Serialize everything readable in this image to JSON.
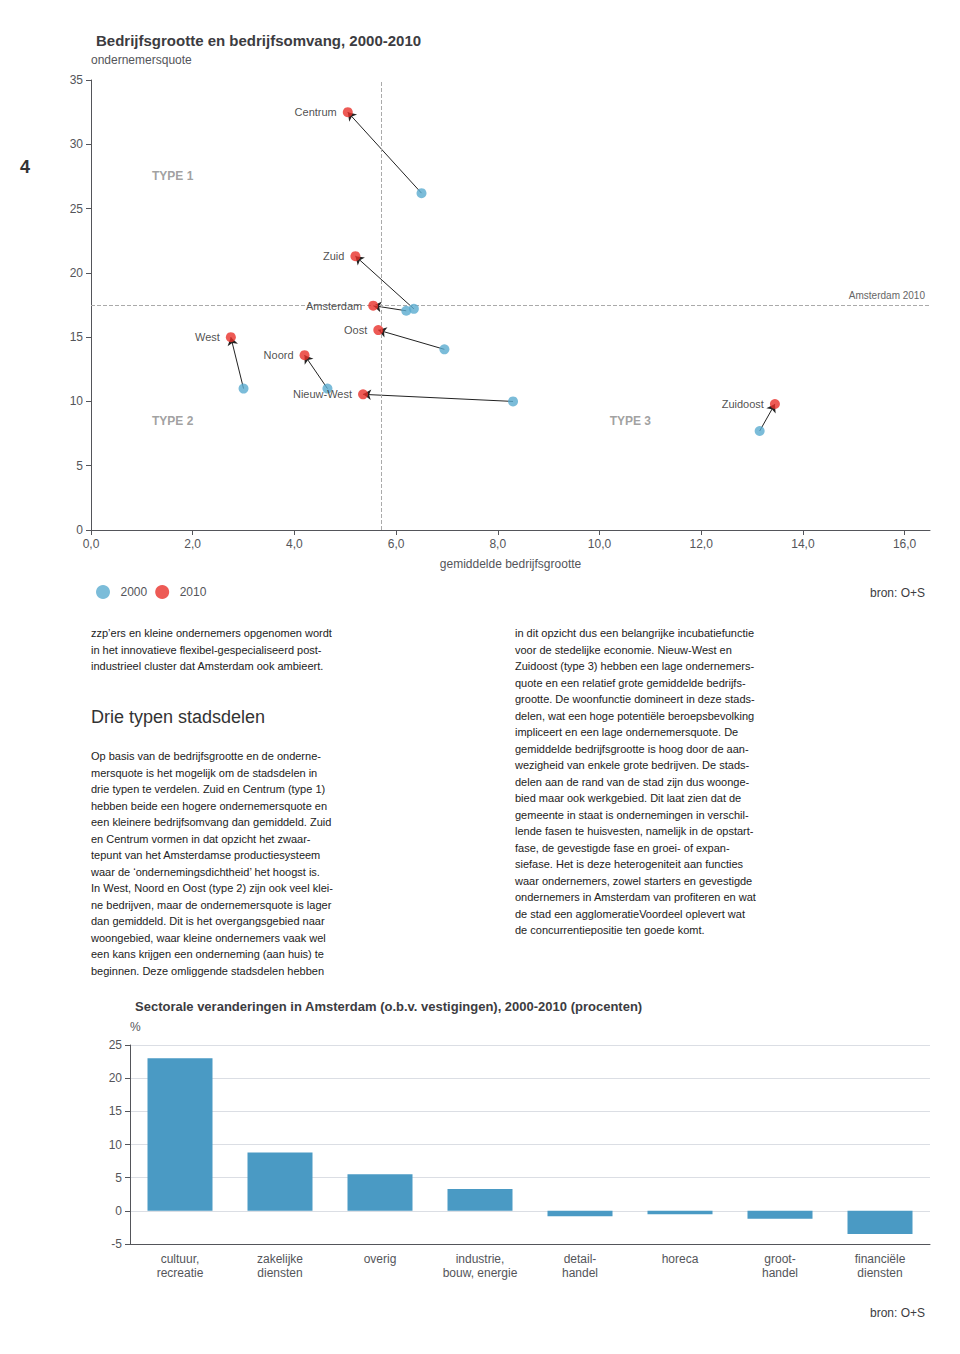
{
  "chart_data": [
    {
      "type": "scatter",
      "title": "Bedrijfsgrootte en bedrijfsomvang, 2000-2010",
      "xlabel": "gemiddelde bedrijfsgrootte",
      "ylabel": "ondernemersquote",
      "xlim": [
        0,
        16.5
      ],
      "ylim": [
        0,
        35
      ],
      "xticks": [
        {
          "value": 0.0,
          "label": "0,0"
        },
        {
          "value": 2.0,
          "label": "2,0"
        },
        {
          "value": 4.0,
          "label": "4,0"
        },
        {
          "value": 6.0,
          "label": "6,0"
        },
        {
          "value": 8.0,
          "label": "8,0"
        },
        {
          "value": 10.0,
          "label": "10,0"
        },
        {
          "value": 12.0,
          "label": "12,0"
        },
        {
          "value": 14.0,
          "label": "14,0"
        },
        {
          "value": 16.0,
          "label": "16,0"
        }
      ],
      "yticks": [
        0,
        5,
        10,
        15,
        20,
        25,
        30,
        35
      ],
      "grid": false,
      "legend": "bottom",
      "point_names": [
        "Centrum",
        "Zuid",
        "Amsterdam",
        "Oost",
        "West",
        "Noord",
        "Nieuw-West",
        "Zuidoost"
      ],
      "series": [
        {
          "name": "2000",
          "color": "#5aabcf",
          "x": [
            6.5,
            6.35,
            6.2,
            6.95,
            3.0,
            4.65,
            8.3,
            13.15
          ],
          "values": [
            26.2,
            17.2,
            17.05,
            14.05,
            11.0,
            11.0,
            10.0,
            7.7
          ]
        },
        {
          "name": "2010",
          "color": "#e8312a",
          "x": [
            5.05,
            5.2,
            5.55,
            5.65,
            2.75,
            4.2,
            5.35,
            13.45
          ],
          "values": [
            32.5,
            21.3,
            17.45,
            15.55,
            15.0,
            13.6,
            10.55,
            9.8
          ]
        }
      ],
      "reference_lines": [
        {
          "axis": "x",
          "value": 5.7
        },
        {
          "axis": "y",
          "value": 17.5,
          "label": "Amsterdam 2010"
        }
      ],
      "annotations": [
        {
          "text": "TYPE 1",
          "x": 1.2,
          "y": 27.5
        },
        {
          "text": "TYPE 2",
          "x": 1.2,
          "y": 8.5
        },
        {
          "text": "TYPE 3",
          "x": 10.2,
          "y": 8.5
        },
        {
          "text": "bron: O+S"
        }
      ]
    },
    {
      "type": "bar",
      "title": "Sectorale veranderingen in Amsterdam (o.b.v. vestigingen), 2000-2010 (procenten)",
      "ylabel": "%",
      "categories": [
        "cultuur,\nrecreatie",
        "zakelijke\ndiensten",
        "overig",
        "industrie,\nbouw, energie",
        "detail-\nhandel",
        "horeca",
        "groot-\nhandel",
        "financiële\ndiensten"
      ],
      "values": [
        23.0,
        8.8,
        5.5,
        3.3,
        -0.8,
        -0.5,
        -1.2,
        -3.5
      ],
      "color": "#4a9ac4",
      "ylim": [
        -5,
        25
      ],
      "yticks": [
        -5,
        0,
        5,
        10,
        15,
        20,
        25
      ],
      "grid": true,
      "annotations": [
        {
          "text": "bron: O+S"
        }
      ]
    }
  ],
  "page_texts": {
    "page_number": "4",
    "columns": [
      "zzp’ers en kleine ondernemers opgenomen wordt\nin het innovatieve flexibel-gespecialiseerd post-\nindustrieel cluster dat Amsterdam ook ambieert.",
      "in dit opzicht dus een belangrijke incubatiefunctie\nvoor de stedelijke economie. Nieuw-West en\nZuidoost (type 3) hebben een lage ondernemers-\nquote en een relatief grote gemiddelde bedrijfs-\ngrootte. De woonfunctie domineert in deze stads-\ndelen, wat een hoge potentiële beroepsbevolking\nimpliceert en een lage ondernemersquote. De\ngemiddelde bedrijfsgrootte is hoog door de aan-\nwezigheid van enkele grote bedrijven. De stads-\ndelen aan de rand van de stad zijn dus woonge-\nbied maar ook werkgebied. Dit laat zien dat de\ngemeente in staat is ondernemingen in verschil-\nlende fasen te huisvesten, namelijk in de opstart-\nfase, de gevestigde fase en groei- of expan-\nsiefase. Het is deze heterogeniteit aan functies\nwaar ondernemers, zowel starters en gevestigde\nondernemers in Amsterdam van profiteren en wat\nde stad een agglomeratieVoordeel oplevert wat\nde concurrentiepositie ten goede komt."
    ],
    "heading": "Drie typen stadsdelen",
    "body": "Op basis van de bedrijfsgrootte en de onderne-\nmersquote is het mogelijk om de stadsdelen in\ndrie typen te verdelen. Zuid en Centrum (type 1)\nhebben beide een hogere ondernemersquote en\neen kleinere bedrijfsomvang dan gemiddeld. Zuid\nen Centrum vormen in dat opzicht het zwaar-\ntepunt van het Amsterdamse productiesysteem\nwaar de ‘ondernemingsdichtheid’ het hoogst is.\nIn West, Noord en Oost (type 2) zijn ook veel klei-\nne bedrijven, maar de ondernemersquote is lager\ndan gemiddeld. Dit is het overgangsgebied naar\nwoongebied, waar kleine ondernemers vaak wel\neen kans krijgen een onderneming (aan huis) te\nbeginnen. Deze omliggende stadsdelen hebben"
  }
}
